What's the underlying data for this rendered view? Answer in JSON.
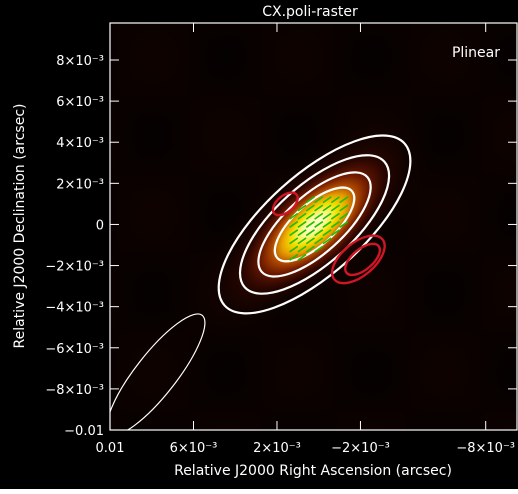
{
  "chart_data": {
    "type": "heatmap",
    "title": "CX.poli-raster",
    "panel_label": "Plinear",
    "xlabel": "Relative J2000 Right Ascension (arcsec)",
    "ylabel": "Relative J2000 Declination (arcsec)",
    "xlim": [
      0.01,
      -0.0095
    ],
    "ylim": [
      -0.01,
      0.0098
    ],
    "x_ticks": [
      {
        "value": 0.01,
        "label": "0.01"
      },
      {
        "value": 0.006,
        "label": "6×10⁻³"
      },
      {
        "value": 0.002,
        "label": "2×10⁻³"
      },
      {
        "value": -0.002,
        "label": "−2×10⁻³"
      },
      {
        "value": -0.008,
        "label": "−8×10⁻³"
      }
    ],
    "y_ticks": [
      {
        "value": 0.008,
        "label": "8×10⁻³"
      },
      {
        "value": 0.006,
        "label": "6×10⁻³"
      },
      {
        "value": 0.004,
        "label": "4×10⁻³"
      },
      {
        "value": 0.002,
        "label": "2×10⁻³"
      },
      {
        "value": 0,
        "label": "0"
      },
      {
        "value": -0.002,
        "label": "−2×10⁻³"
      },
      {
        "value": -0.004,
        "label": "−4×10⁻³"
      },
      {
        "value": -0.006,
        "label": "−6×10⁻³"
      },
      {
        "value": -0.008,
        "label": "−8×10⁻³"
      },
      {
        "value": -0.01,
        "label": "−0.01"
      }
    ],
    "source": {
      "cx": 0.0002,
      "cy": 0.0,
      "sigma_major": 0.0021,
      "sigma_minor": 0.0009,
      "pa_deg": 42
    },
    "white_contours": [
      {
        "cx": 0.0002,
        "cy": 0.0,
        "semi_major": 0.0058,
        "semi_minor": 0.0024,
        "pa_deg": 42
      },
      {
        "cx": 0.0002,
        "cy": 0.0,
        "semi_major": 0.0045,
        "semi_minor": 0.0019,
        "pa_deg": 42
      },
      {
        "cx": 0.0002,
        "cy": 0.0,
        "semi_major": 0.0034,
        "semi_minor": 0.0014,
        "pa_deg": 42
      },
      {
        "cx": 0.0002,
        "cy": 0.0,
        "semi_major": 0.0024,
        "semi_minor": 0.001,
        "pa_deg": 42
      }
    ],
    "red_contours": [
      {
        "cx": 0.0016,
        "cy": 0.001,
        "semi_major": 0.0007,
        "semi_minor": 0.0004,
        "pa_deg": 40
      },
      {
        "cx": -0.0019,
        "cy": -0.0017,
        "semi_major": 0.0015,
        "semi_minor": 0.0008,
        "pa_deg": 40
      },
      {
        "cx": -0.0021,
        "cy": -0.0017,
        "semi_major": 0.001,
        "semi_minor": 0.0005,
        "pa_deg": 40
      }
    ],
    "vectors": {
      "color": "#19c000",
      "x": [
        0.0012,
        0.0008,
        0.0004,
        0.0,
        -0.0004,
        -0.0008,
        -0.0012
      ],
      "y": [
        0.0012,
        0.0008,
        0.0004,
        0.0,
        -0.0004,
        -0.0008,
        -0.0012,
        -0.0016
      ],
      "angle_deg": 35,
      "length": 0.00048
    },
    "beam": {
      "cx": 0.0078,
      "cy": -0.0073,
      "semi_major": 0.0036,
      "semi_minor": 0.001,
      "pa_deg": 52
    },
    "colors": {
      "frame": "#000000",
      "axes": "#ffffff",
      "contour": "#ffffff",
      "red_contour": "#d01525",
      "colormap": [
        "#000000",
        "#2a0600",
        "#6e1a00",
        "#b04a00",
        "#e8a000",
        "#f6e000",
        "#ffffc0"
      ]
    }
  }
}
